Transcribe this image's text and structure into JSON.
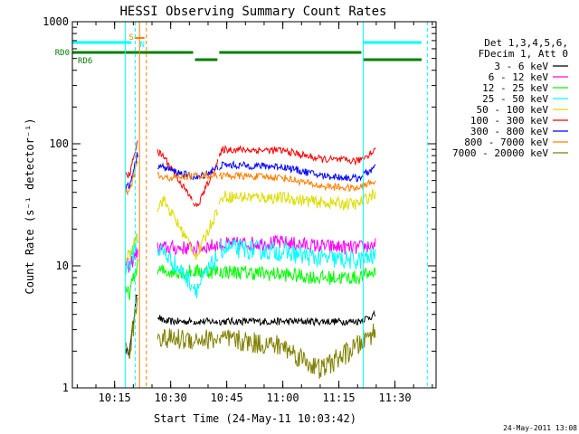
{
  "chart_data": {
    "type": "line",
    "title": "HESSI Observing Summary Count Rates",
    "xlabel": "Start Time (24-May-11 10:03:42)",
    "ylabel": "Count Rate (s⁻¹ detector⁻¹)",
    "yscale": "log",
    "ylim": [
      1,
      1000
    ],
    "xlim": [
      "10:03:42",
      "11:41:00"
    ],
    "x_ticks": [
      "10:15",
      "10:30",
      "10:45",
      "11:00",
      "11:15",
      "11:30"
    ],
    "y_ticks": [
      "1",
      "10",
      "100",
      "1000"
    ],
    "legend_header": [
      "Det 1,3,4,5,6,",
      "FDecim 1, Att 0"
    ],
    "legend_position": "right",
    "series": [
      {
        "name": "3 - 6 keV",
        "color": "#000000",
        "x": [
          "10:19",
          "10:21",
          "10:28",
          "10:37",
          "10:44",
          "11:00",
          "11:10",
          "11:20",
          "11:25"
        ],
        "values": [
          2,
          6,
          3.5,
          3.5,
          3.5,
          3.5,
          3.5,
          3.5,
          4
        ]
      },
      {
        "name": "6 - 12 keV",
        "color": "#ff00ff",
        "x": [
          "10:19",
          "10:21",
          "10:28",
          "10:37",
          "10:44",
          "11:00",
          "11:10",
          "11:20",
          "11:25"
        ],
        "values": [
          10,
          13,
          14,
          14,
          15,
          15.5,
          14.5,
          14,
          15
        ]
      },
      {
        "name": "12 - 25 keV",
        "color": "#00ff00",
        "x": [
          "10:19",
          "10:21",
          "10:28",
          "10:37",
          "10:44",
          "11:00",
          "11:10",
          "11:20",
          "11:25"
        ],
        "values": [
          6,
          10,
          9,
          9,
          9,
          8.5,
          8,
          8,
          9
        ]
      },
      {
        "name": "25 - 50 keV",
        "color": "#00ffff",
        "x": [
          "10:19",
          "10:21",
          "10:28",
          "10:37",
          "10:44",
          "11:00",
          "11:10",
          "11:20",
          "11:25"
        ],
        "values": [
          10,
          17,
          13,
          6.5,
          14,
          13,
          11.5,
          11,
          12
        ]
      },
      {
        "name": "50 - 100 keV",
        "color": "#dddd00",
        "x": [
          "10:19",
          "10:21",
          "10:28",
          "10:37",
          "10:44",
          "11:00",
          "11:10",
          "11:20",
          "11:25"
        ],
        "values": [
          12,
          18,
          35,
          12,
          37,
          36,
          33,
          32,
          40
        ]
      },
      {
        "name": "100 - 300 keV",
        "color": "#ff0000",
        "x": [
          "10:19",
          "10:21",
          "10:28",
          "10:37",
          "10:44",
          "11:00",
          "11:10",
          "11:20",
          "11:25"
        ],
        "values": [
          55,
          105,
          80,
          30,
          90,
          88,
          75,
          72,
          90
        ]
      },
      {
        "name": "300 - 800 keV",
        "color": "#0000ff",
        "x": [
          "10:19",
          "10:21",
          "10:28",
          "10:37",
          "10:44",
          "11:00",
          "11:10",
          "11:20",
          "11:25"
        ],
        "values": [
          45,
          80,
          64,
          52,
          67,
          65,
          55,
          52,
          65
        ]
      },
      {
        "name": "800 - 7000 keV",
        "color": "#ff8000",
        "x": [
          "10:19",
          "10:21",
          "10:28",
          "10:37",
          "10:44",
          "11:00",
          "11:10",
          "11:20",
          "11:25"
        ],
        "values": [
          40,
          70,
          52,
          55,
          55,
          53,
          45,
          43,
          50
        ]
      },
      {
        "name": "7000 - 20000 keV",
        "color": "#808000",
        "x": [
          "10:19",
          "10:21",
          "10:28",
          "10:37",
          "10:44",
          "11:00",
          "11:10",
          "11:20",
          "11:25"
        ],
        "values": [
          2,
          5,
          2.5,
          2.5,
          2.5,
          2.2,
          1.4,
          2.2,
          3
        ]
      }
    ],
    "annotations": [
      {
        "label": "S",
        "color": "#ff8000",
        "x": "10:20"
      },
      {
        "label": "N",
        "color": "#00ffff",
        "x": "10:21"
      },
      {
        "label": "RD0",
        "color": "#008000",
        "x": "10:03:42"
      },
      {
        "label": "RD6",
        "color": "#008000",
        "x": "10:03:42"
      }
    ],
    "footer_timestamp": "24-May-2011 13:08"
  }
}
